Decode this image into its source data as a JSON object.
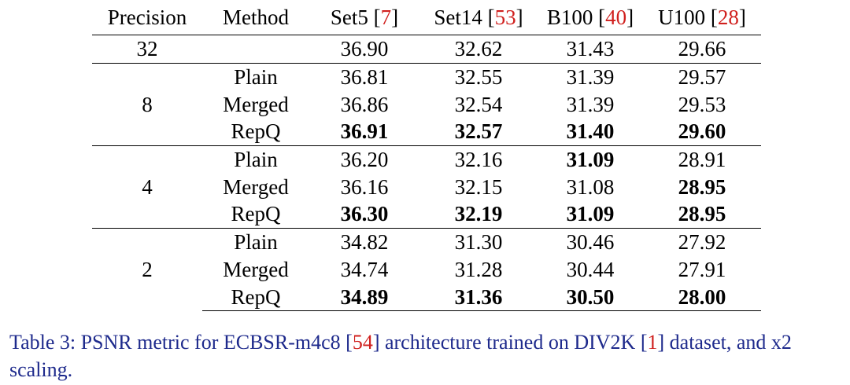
{
  "table": {
    "headers": {
      "precision": "Precision",
      "method": "Method",
      "set5": {
        "name": "Set5 [",
        "ref": "7",
        "close": "]"
      },
      "set14": {
        "name": "Set14 [",
        "ref": "53",
        "close": "]"
      },
      "b100": {
        "name": "B100 [",
        "ref": "40",
        "close": "]"
      },
      "u100": {
        "name": "U100 [",
        "ref": "28",
        "close": "]"
      }
    },
    "fp": {
      "precision": "32",
      "method": "",
      "set5": "36.90",
      "set14": "32.62",
      "b100": "31.43",
      "u100": "29.66"
    },
    "groups": [
      {
        "precision": "8",
        "rows": [
          {
            "method": "Plain",
            "set5": "36.81",
            "set14": "32.55",
            "b100": "31.39",
            "u100": "29.57"
          },
          {
            "method": "Merged",
            "set5": "36.86",
            "set14": "32.54",
            "b100": "31.39",
            "u100": "29.53"
          },
          {
            "method": "RepQ",
            "set5": "36.91",
            "set14": "32.57",
            "b100": "31.40",
            "u100": "29.60"
          }
        ]
      },
      {
        "precision": "4",
        "rows": [
          {
            "method": "Plain",
            "set5": "36.20",
            "set14": "32.16",
            "b100": "31.09",
            "u100": "28.91"
          },
          {
            "method": "Merged",
            "set5": "36.16",
            "set14": "32.15",
            "b100": "31.08",
            "u100": "28.95"
          },
          {
            "method": "RepQ",
            "set5": "36.30",
            "set14": "32.19",
            "b100": "31.09",
            "u100": "28.95"
          }
        ]
      },
      {
        "precision": "2",
        "rows": [
          {
            "method": "Plain",
            "set5": "34.82",
            "set14": "31.30",
            "b100": "30.46",
            "u100": "27.92"
          },
          {
            "method": "Merged",
            "set5": "34.74",
            "set14": "31.28",
            "b100": "30.44",
            "u100": "27.91"
          },
          {
            "method": "RepQ",
            "set5": "34.89",
            "set14": "31.36",
            "b100": "30.50",
            "u100": "28.00"
          }
        ]
      }
    ]
  },
  "caption": {
    "text_1": "Table 3: PSNR metric for ECBSR-m4c8 [",
    "ref_1": "54",
    "text_2": "] architecture trained on DIV2K [",
    "ref_2": "1",
    "text_3": "] dataset, and x2 scaling."
  }
}
